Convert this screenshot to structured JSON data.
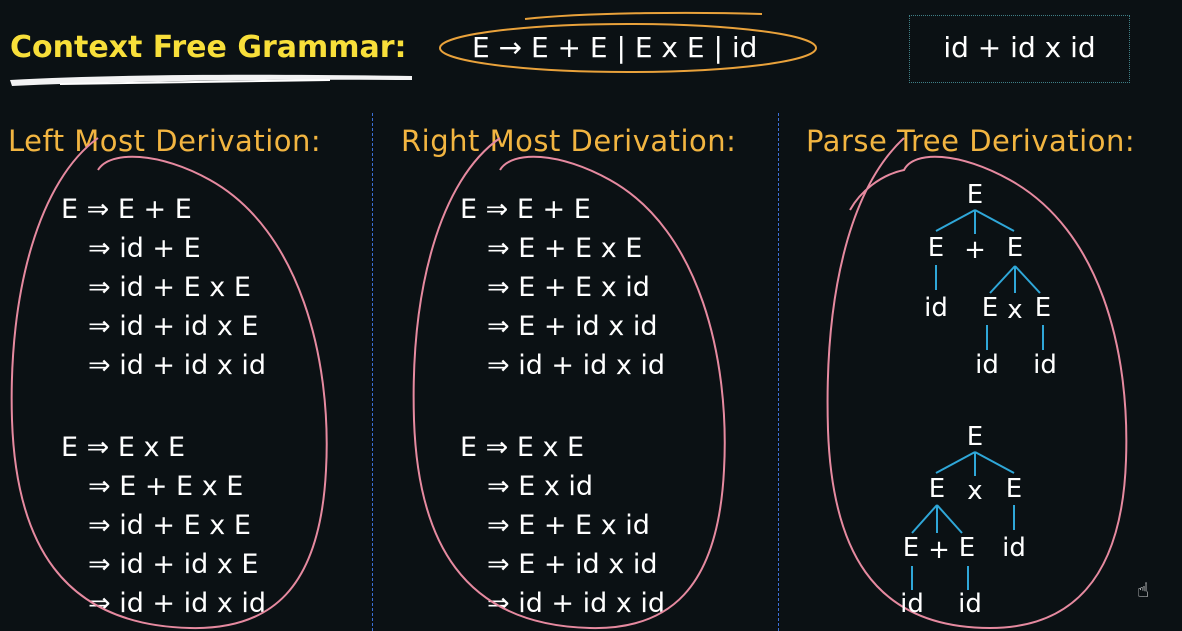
{
  "header": {
    "title": "Context Free Grammar:",
    "grammar": "E → E + E | E x E | id",
    "input_string": "id + id x id"
  },
  "columns": [
    {
      "heading": "Left Most Derivation:",
      "derivation_1": [
        "E ⇒ E + E",
        "⇒ id + E",
        "⇒ id + E x E",
        "⇒ id + id x E",
        "⇒ id + id x id"
      ],
      "derivation_2": [
        "E ⇒ E x E",
        "⇒ E + E x E",
        "⇒ id + E x E",
        "⇒ id + id x E",
        "⇒ id + id x id"
      ]
    },
    {
      "heading": "Right Most Derivation:",
      "derivation_1": [
        "E ⇒ E + E",
        "⇒ E + E x E",
        "⇒ E + E x id",
        "⇒ E + id x id",
        "⇒ id + id x id"
      ],
      "derivation_2": [
        "E ⇒ E x E",
        "⇒ E x id",
        "⇒ E + E x id",
        "⇒ E + id x id",
        "⇒ id + id x id"
      ]
    },
    {
      "heading": "Parse Tree Derivation:"
    }
  ],
  "trees": [
    {
      "nodes": [
        "E",
        "E",
        "+",
        "E",
        "id",
        "E",
        "x",
        "E",
        "id",
        "id"
      ]
    },
    {
      "nodes": [
        "E",
        "E",
        "x",
        "E",
        "E",
        "+",
        "E",
        "id",
        "id",
        "id"
      ]
    }
  ],
  "colors": {
    "background": "#0b1114",
    "title": "#f8df3a",
    "heading": "#f2b541",
    "grammar_ellipse": "#e9a23b",
    "derivation_circles": "#e68aa0",
    "tree_edges": "#2fa7d8",
    "divider": "#3b6fd6",
    "input_box_border": "#3f7f86"
  }
}
